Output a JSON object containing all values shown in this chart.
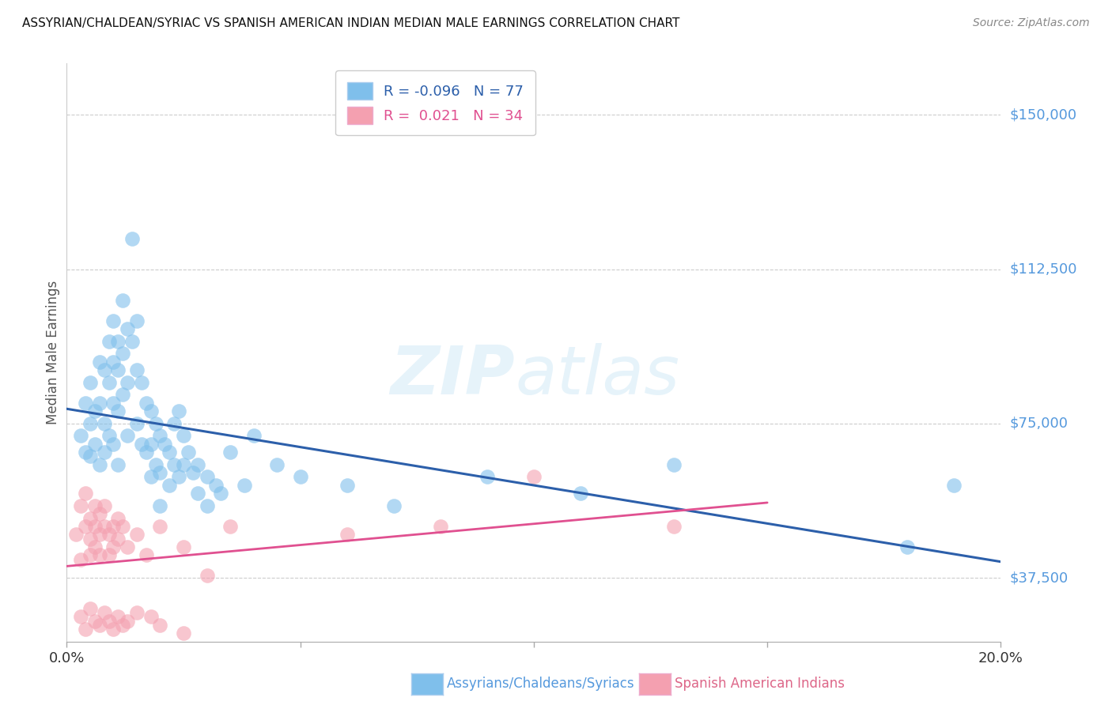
{
  "title": "ASSYRIAN/CHALDEAN/SYRIAC VS SPANISH AMERICAN INDIAN MEDIAN MALE EARNINGS CORRELATION CHART",
  "source": "Source: ZipAtlas.com",
  "ylabel": "Median Male Earnings",
  "xlim": [
    0.0,
    0.2
  ],
  "ylim": [
    22000,
    162500
  ],
  "yticks": [
    37500,
    75000,
    112500,
    150000
  ],
  "ytick_labels": [
    "$37,500",
    "$75,000",
    "$112,500",
    "$150,000"
  ],
  "xticks": [
    0.0,
    0.05,
    0.1,
    0.15,
    0.2
  ],
  "xtick_labels": [
    "0.0%",
    "",
    "",
    "",
    "20.0%"
  ],
  "blue_color": "#7fbfeb",
  "pink_color": "#f4a0b0",
  "blue_line_color": "#2c5faa",
  "pink_line_color": "#e05090",
  "legend_r_blue": "-0.096",
  "legend_n_blue": "77",
  "legend_r_pink": "0.021",
  "legend_n_pink": "34",
  "legend_label_blue": "Assyrians/Chaldeans/Syriacs",
  "legend_label_pink": "Spanish American Indians",
  "blue_scatter_x": [
    0.003,
    0.004,
    0.004,
    0.005,
    0.005,
    0.005,
    0.006,
    0.006,
    0.007,
    0.007,
    0.007,
    0.008,
    0.008,
    0.008,
    0.009,
    0.009,
    0.009,
    0.01,
    0.01,
    0.01,
    0.01,
    0.011,
    0.011,
    0.011,
    0.011,
    0.012,
    0.012,
    0.012,
    0.013,
    0.013,
    0.013,
    0.014,
    0.014,
    0.015,
    0.015,
    0.015,
    0.016,
    0.016,
    0.017,
    0.017,
    0.018,
    0.018,
    0.018,
    0.019,
    0.019,
    0.02,
    0.02,
    0.02,
    0.021,
    0.022,
    0.022,
    0.023,
    0.023,
    0.024,
    0.024,
    0.025,
    0.025,
    0.026,
    0.027,
    0.028,
    0.028,
    0.03,
    0.03,
    0.032,
    0.033,
    0.035,
    0.038,
    0.04,
    0.045,
    0.05,
    0.06,
    0.07,
    0.09,
    0.11,
    0.13,
    0.18,
    0.19
  ],
  "blue_scatter_y": [
    72000,
    80000,
    68000,
    75000,
    85000,
    67000,
    78000,
    70000,
    90000,
    80000,
    65000,
    88000,
    75000,
    68000,
    95000,
    85000,
    72000,
    100000,
    90000,
    80000,
    70000,
    95000,
    88000,
    78000,
    65000,
    105000,
    92000,
    82000,
    98000,
    85000,
    72000,
    120000,
    95000,
    100000,
    88000,
    75000,
    85000,
    70000,
    80000,
    68000,
    78000,
    70000,
    62000,
    75000,
    65000,
    72000,
    63000,
    55000,
    70000,
    68000,
    60000,
    75000,
    65000,
    78000,
    62000,
    72000,
    65000,
    68000,
    63000,
    65000,
    58000,
    62000,
    55000,
    60000,
    58000,
    68000,
    60000,
    72000,
    65000,
    62000,
    60000,
    55000,
    62000,
    58000,
    65000,
    45000,
    60000
  ],
  "pink_scatter_x": [
    0.002,
    0.003,
    0.003,
    0.004,
    0.004,
    0.005,
    0.005,
    0.005,
    0.006,
    0.006,
    0.006,
    0.007,
    0.007,
    0.007,
    0.008,
    0.008,
    0.009,
    0.009,
    0.01,
    0.01,
    0.011,
    0.011,
    0.012,
    0.013,
    0.015,
    0.017,
    0.02,
    0.025,
    0.03,
    0.035,
    0.06,
    0.08,
    0.1,
    0.13
  ],
  "pink_scatter_y": [
    48000,
    42000,
    55000,
    50000,
    58000,
    52000,
    47000,
    43000,
    55000,
    50000,
    45000,
    53000,
    48000,
    43000,
    50000,
    55000,
    48000,
    43000,
    50000,
    45000,
    52000,
    47000,
    50000,
    45000,
    48000,
    43000,
    50000,
    45000,
    38000,
    50000,
    48000,
    50000,
    62000,
    50000
  ],
  "pink_scatter_x_low": [
    0.003,
    0.004,
    0.005,
    0.006,
    0.007,
    0.008,
    0.009,
    0.01,
    0.011,
    0.012,
    0.013,
    0.015,
    0.018,
    0.02,
    0.025
  ],
  "pink_scatter_y_low": [
    28000,
    25000,
    30000,
    27000,
    26000,
    29000,
    27000,
    25000,
    28000,
    26000,
    27000,
    29000,
    28000,
    26000,
    24000
  ]
}
